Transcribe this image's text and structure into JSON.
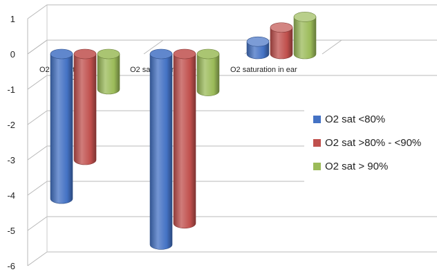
{
  "chart_data": {
    "type": "bar",
    "style": "3d-cylinder",
    "categories": [
      "O2  saturation in finger",
      "O2  saturation in toe",
      "O2  saturation in ear"
    ],
    "category_lines": [
      [
        "O2  saturation in",
        "finger"
      ],
      [
        "O2  saturation in toe"
      ],
      [
        "O2  saturation in ear"
      ]
    ],
    "series": [
      {
        "name": "O2 sat <80%",
        "color": "#4472c4",
        "values": [
          -4.1,
          -5.4,
          0.35
        ]
      },
      {
        "name": "O2 sat >80% - <90%",
        "color": "#c0504d",
        "values": [
          -3.0,
          -4.8,
          0.75
        ]
      },
      {
        "name": "O2 sat > 90%",
        "color": "#9bbb59",
        "values": [
          -1.0,
          -1.05,
          1.05
        ]
      }
    ],
    "y_ticks": [
      "1",
      "0",
      "-1",
      "-2",
      "-3",
      "-4",
      "-5",
      "-6"
    ],
    "ylim": [
      -6,
      1
    ],
    "grid": true,
    "legend_position": "right"
  }
}
